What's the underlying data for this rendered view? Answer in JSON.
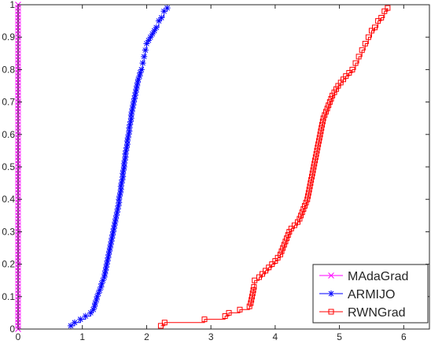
{
  "chart_data": {
    "type": "line",
    "title": "",
    "xlabel": "",
    "ylabel": "",
    "xlim": [
      0,
      6.4
    ],
    "ylim": [
      0,
      1
    ],
    "xticks": [
      0,
      1,
      2,
      3,
      4,
      5,
      6
    ],
    "yticks": [
      0,
      0.1,
      0.2,
      0.3,
      0.4,
      0.5,
      0.6,
      0.7,
      0.8,
      0.9,
      1
    ],
    "xtick_labels": [
      "0",
      "1",
      "2",
      "3",
      "4",
      "5",
      "6"
    ],
    "ytick_labels": [
      "0",
      "0.1",
      "0.2",
      "0.3",
      "0.4",
      "0.5",
      "0.6",
      "0.7",
      "0.8",
      "0.9",
      "1"
    ],
    "grid": false,
    "legend_position": "bottom-right",
    "series": [
      {
        "name": "MAdaGrad",
        "color": "#ff00ff",
        "marker": "x",
        "x": [
          0,
          0,
          0,
          0,
          0,
          0,
          0,
          0,
          0,
          0,
          0,
          0,
          0,
          0,
          0,
          0,
          0,
          0,
          0,
          0,
          0,
          0,
          0,
          0,
          0,
          0,
          0,
          0,
          0,
          0,
          0,
          0,
          0,
          0,
          0,
          0,
          0,
          0,
          0,
          0,
          0,
          0,
          0,
          0,
          0,
          0,
          0,
          0,
          0,
          0,
          0,
          0,
          0,
          0,
          0,
          0,
          0,
          0,
          0,
          0,
          0,
          0,
          0,
          0,
          0,
          0,
          0,
          0,
          0,
          0,
          0,
          0,
          0,
          0,
          0,
          0,
          0,
          0,
          0,
          0,
          0,
          0,
          0,
          0,
          0,
          0,
          0,
          0,
          0,
          0,
          0,
          0,
          0,
          0,
          0,
          0,
          0,
          0,
          0,
          0,
          0
        ],
        "y": [
          0.0,
          0.01,
          0.02,
          0.03,
          0.04,
          0.05,
          0.06,
          0.07,
          0.08,
          0.09,
          0.1,
          0.11,
          0.12,
          0.13,
          0.14,
          0.15,
          0.16,
          0.17,
          0.18,
          0.19,
          0.2,
          0.21,
          0.22,
          0.23,
          0.24,
          0.25,
          0.26,
          0.27,
          0.28,
          0.29,
          0.3,
          0.31,
          0.32,
          0.33,
          0.34,
          0.35,
          0.36,
          0.37,
          0.38,
          0.39,
          0.4,
          0.41,
          0.42,
          0.43,
          0.44,
          0.45,
          0.46,
          0.47,
          0.48,
          0.49,
          0.5,
          0.51,
          0.52,
          0.53,
          0.54,
          0.55,
          0.56,
          0.57,
          0.58,
          0.59,
          0.6,
          0.61,
          0.62,
          0.63,
          0.64,
          0.65,
          0.66,
          0.67,
          0.68,
          0.69,
          0.7,
          0.71,
          0.72,
          0.73,
          0.74,
          0.75,
          0.76,
          0.77,
          0.78,
          0.79,
          0.8,
          0.81,
          0.82,
          0.83,
          0.84,
          0.85,
          0.86,
          0.87,
          0.88,
          0.89,
          0.9,
          0.91,
          0.92,
          0.93,
          0.94,
          0.95,
          0.96,
          0.97,
          0.98,
          0.99,
          1.0
        ]
      },
      {
        "name": "ARMIJO",
        "color": "#0000ff",
        "marker": "*",
        "x": [
          0.82,
          0.88,
          0.97,
          1.05,
          1.13,
          1.17,
          1.19,
          1.2,
          1.22,
          1.23,
          1.25,
          1.27,
          1.29,
          1.3,
          1.32,
          1.34,
          1.35,
          1.36,
          1.37,
          1.38,
          1.39,
          1.4,
          1.41,
          1.42,
          1.43,
          1.44,
          1.45,
          1.46,
          1.47,
          1.48,
          1.49,
          1.5,
          1.51,
          1.52,
          1.53,
          1.54,
          1.55,
          1.56,
          1.57,
          1.57,
          1.58,
          1.59,
          1.6,
          1.6,
          1.61,
          1.62,
          1.63,
          1.63,
          1.64,
          1.65,
          1.65,
          1.66,
          1.67,
          1.67,
          1.68,
          1.69,
          1.7,
          1.7,
          1.71,
          1.72,
          1.73,
          1.73,
          1.74,
          1.75,
          1.76,
          1.76,
          1.77,
          1.78,
          1.79,
          1.8,
          1.81,
          1.82,
          1.83,
          1.84,
          1.85,
          1.86,
          1.87,
          1.89,
          1.9,
          1.92,
          1.94,
          1.96,
          1.98,
          2.0,
          2.03,
          2.06,
          2.09,
          2.12,
          2.15,
          2.19,
          2.23,
          2.27,
          2.32
        ],
        "y": [
          0.01,
          0.02,
          0.03,
          0.04,
          0.05,
          0.06,
          0.07,
          0.08,
          0.09,
          0.1,
          0.11,
          0.12,
          0.13,
          0.14,
          0.15,
          0.16,
          0.17,
          0.18,
          0.19,
          0.2,
          0.21,
          0.22,
          0.23,
          0.24,
          0.25,
          0.26,
          0.27,
          0.28,
          0.29,
          0.3,
          0.31,
          0.32,
          0.33,
          0.34,
          0.35,
          0.36,
          0.37,
          0.38,
          0.39,
          0.4,
          0.41,
          0.42,
          0.43,
          0.44,
          0.45,
          0.46,
          0.47,
          0.48,
          0.49,
          0.5,
          0.51,
          0.52,
          0.53,
          0.54,
          0.55,
          0.56,
          0.57,
          0.58,
          0.59,
          0.6,
          0.61,
          0.62,
          0.63,
          0.64,
          0.65,
          0.66,
          0.67,
          0.68,
          0.69,
          0.7,
          0.71,
          0.72,
          0.73,
          0.74,
          0.75,
          0.76,
          0.77,
          0.78,
          0.79,
          0.8,
          0.82,
          0.84,
          0.86,
          0.88,
          0.89,
          0.9,
          0.91,
          0.92,
          0.93,
          0.95,
          0.96,
          0.98,
          0.99
        ]
      },
      {
        "name": "RWNGrad",
        "color": "#ff0000",
        "marker": "s",
        "x": [
          2.22,
          2.28,
          2.9,
          3.22,
          3.28,
          3.45,
          3.6,
          3.62,
          3.63,
          3.64,
          3.65,
          3.66,
          3.67,
          3.68,
          3.75,
          3.8,
          3.85,
          3.9,
          3.95,
          4.0,
          4.04,
          4.08,
          4.1,
          4.12,
          4.14,
          4.16,
          4.18,
          4.2,
          4.22,
          4.25,
          4.3,
          4.35,
          4.38,
          4.4,
          4.42,
          4.44,
          4.46,
          4.48,
          4.5,
          4.51,
          4.52,
          4.53,
          4.54,
          4.55,
          4.56,
          4.57,
          4.58,
          4.59,
          4.6,
          4.61,
          4.62,
          4.63,
          4.64,
          4.65,
          4.66,
          4.67,
          4.68,
          4.69,
          4.7,
          4.71,
          4.72,
          4.73,
          4.74,
          4.75,
          4.77,
          4.79,
          4.81,
          4.83,
          4.85,
          4.87,
          4.89,
          4.92,
          4.95,
          4.98,
          5.02,
          5.06,
          5.1,
          5.15,
          5.2,
          5.25,
          5.3,
          5.35,
          5.4,
          5.45,
          5.5,
          5.55,
          5.6,
          5.65,
          5.7,
          5.75
        ],
        "y": [
          0.01,
          0.02,
          0.03,
          0.04,
          0.05,
          0.06,
          0.07,
          0.08,
          0.09,
          0.1,
          0.11,
          0.12,
          0.13,
          0.15,
          0.16,
          0.17,
          0.18,
          0.19,
          0.2,
          0.21,
          0.22,
          0.23,
          0.24,
          0.25,
          0.26,
          0.27,
          0.28,
          0.29,
          0.3,
          0.31,
          0.32,
          0.33,
          0.34,
          0.35,
          0.36,
          0.37,
          0.38,
          0.39,
          0.4,
          0.41,
          0.42,
          0.43,
          0.44,
          0.45,
          0.46,
          0.47,
          0.48,
          0.49,
          0.5,
          0.51,
          0.52,
          0.53,
          0.54,
          0.55,
          0.56,
          0.57,
          0.58,
          0.59,
          0.6,
          0.61,
          0.62,
          0.63,
          0.64,
          0.65,
          0.66,
          0.67,
          0.68,
          0.69,
          0.7,
          0.71,
          0.72,
          0.73,
          0.74,
          0.75,
          0.76,
          0.77,
          0.78,
          0.79,
          0.8,
          0.82,
          0.84,
          0.86,
          0.88,
          0.9,
          0.92,
          0.93,
          0.95,
          0.96,
          0.98,
          0.99
        ]
      }
    ]
  }
}
